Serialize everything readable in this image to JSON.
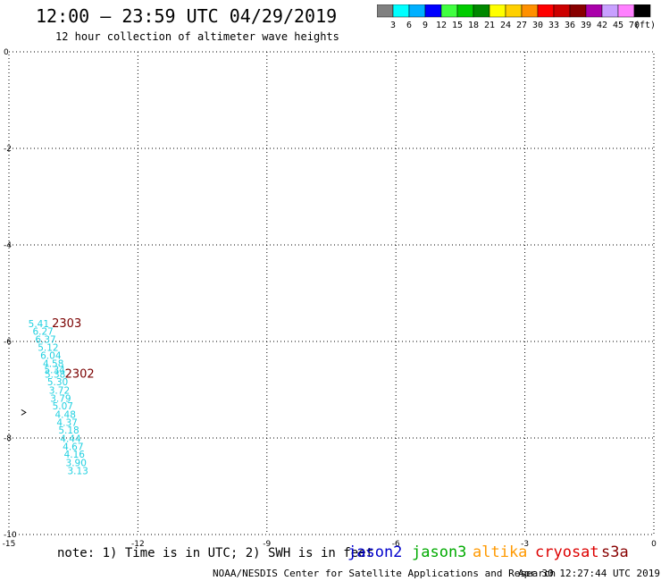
{
  "header": {
    "title": "12:00 – 23:59 UTC 04/29/2019",
    "subtitle": "12 hour collection of altimeter wave heights"
  },
  "colorbar": {
    "unit": "(ft)",
    "colors": [
      "#808080",
      "#00ffff",
      "#00b0ff",
      "#0000ff",
      "#40ff40",
      "#00cc00",
      "#008800",
      "#ffff00",
      "#ffd000",
      "#ff9000",
      "#ff0000",
      "#cc0000",
      "#880000",
      "#aa00aa",
      "#c8a0ff",
      "#ff80ff",
      "#000000"
    ],
    "labels": [
      "3",
      "6",
      "9",
      "12",
      "15",
      "18",
      "21",
      "24",
      "27",
      "30",
      "33",
      "36",
      "39",
      "42",
      "45",
      "70"
    ]
  },
  "map": {
    "x_ticks": [
      "-15",
      "-12",
      "-9",
      "-6",
      "-3",
      "0"
    ],
    "y_ticks": [
      "0",
      "-2",
      "-4",
      "-6",
      "-8",
      "-10"
    ],
    "x_range": [
      -15,
      0
    ],
    "y_range": [
      -10,
      0
    ],
    "track_color": "#20d0e0",
    "time_color": "#7a0000",
    "observations": [
      {
        "lon": -14.55,
        "lat": -5.7,
        "swh": "5.41"
      },
      {
        "lon": -14.45,
        "lat": -5.86,
        "swh": "6.27"
      },
      {
        "lon": -14.39,
        "lat": -6.03,
        "swh": "6.37"
      },
      {
        "lon": -14.33,
        "lat": -6.19,
        "swh": "5.12"
      },
      {
        "lon": -14.27,
        "lat": -6.36,
        "swh": "6.04"
      },
      {
        "lon": -14.21,
        "lat": -6.53,
        "swh": "4.58"
      },
      {
        "lon": -14.18,
        "lat": -6.66,
        "swh": "5.34"
      },
      {
        "lon": -14.17,
        "lat": -6.75,
        "swh": "5.38"
      },
      {
        "lon": -14.11,
        "lat": -6.91,
        "swh": "5.30"
      },
      {
        "lon": -14.07,
        "lat": -7.08,
        "swh": "3.72"
      },
      {
        "lon": -14.04,
        "lat": -7.25,
        "swh": "3.79"
      },
      {
        "lon": -13.99,
        "lat": -7.41,
        "swh": "5.07"
      },
      {
        "lon": -13.93,
        "lat": -7.58,
        "swh": "4.48"
      },
      {
        "lon": -13.89,
        "lat": -7.75,
        "swh": "4.37"
      },
      {
        "lon": -13.85,
        "lat": -7.91,
        "swh": "5.18"
      },
      {
        "lon": -13.81,
        "lat": -8.08,
        "swh": "4.44"
      },
      {
        "lon": -13.75,
        "lat": -8.25,
        "swh": "4.67"
      },
      {
        "lon": -13.72,
        "lat": -8.41,
        "swh": "4.16"
      },
      {
        "lon": -13.68,
        "lat": -8.58,
        "swh": "3.90"
      },
      {
        "lon": -13.64,
        "lat": -8.75,
        "swh": "3.13"
      }
    ],
    "time_labels": [
      {
        "lon": -14.0,
        "lat": -5.7,
        "text": "2303"
      },
      {
        "lon": -13.7,
        "lat": -6.75,
        "text": "2302"
      }
    ],
    "track_marks": [
      {
        "lon": -14.65,
        "lat": -7.47
      }
    ]
  },
  "note": "note: 1) Time is in UTC; 2) SWH is in feet",
  "legend": [
    {
      "name": "jason2",
      "color": "#0000cc"
    },
    {
      "name": "jason3",
      "color": "#00aa00"
    },
    {
      "name": "altika",
      "color": "#ff9900"
    },
    {
      "name": "cryosat",
      "color": "#dd0000"
    },
    {
      "name": "s3a",
      "color": "#880000"
    }
  ],
  "footer": {
    "credit": "NOAA/NESDIS Center for Satellite Applications and Research",
    "generated": "Apr 30 12:27:44 UTC 2019"
  }
}
